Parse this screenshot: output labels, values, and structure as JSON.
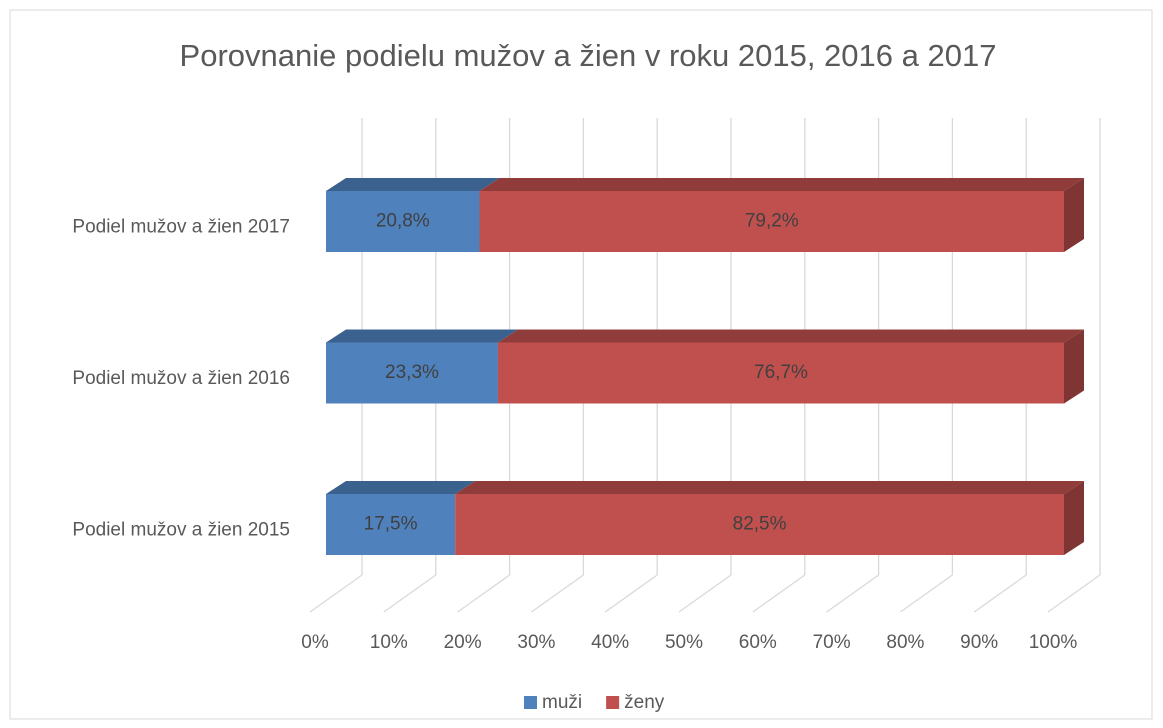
{
  "chart_data": {
    "type": "bar",
    "orientation": "horizontal",
    "stacked": true,
    "three_d": true,
    "title": "Porovnanie podielu mužov a žien v roku 2015, 2016 a 2017",
    "categories": [
      "Podiel mužov a žien 2017",
      "Podiel mužov a žien 2016",
      "Podiel mužov a žien 2015"
    ],
    "series": [
      {
        "name": "muži",
        "color": "#4f81bd",
        "values": [
          20.8,
          23.3,
          17.5
        ],
        "value_labels": [
          "20,8%",
          "23,3%",
          "17,5%"
        ]
      },
      {
        "name": "ženy",
        "color": "#c0504d",
        "values": [
          79.2,
          76.7,
          82.5
        ],
        "value_labels": [
          "79,2%",
          "76,7%",
          "82,5%"
        ]
      }
    ],
    "xlim": [
      0,
      100
    ],
    "xticks": [
      {
        "value": 0,
        "label": "0%"
      },
      {
        "value": 10,
        "label": "10%"
      },
      {
        "value": 20,
        "label": "20%"
      },
      {
        "value": 30,
        "label": "30%"
      },
      {
        "value": 40,
        "label": "40%"
      },
      {
        "value": 50,
        "label": "50%"
      },
      {
        "value": 60,
        "label": "60%"
      },
      {
        "value": 70,
        "label": "70%"
      },
      {
        "value": 80,
        "label": "80%"
      },
      {
        "value": 90,
        "label": "90%"
      },
      {
        "value": 100,
        "label": "100%"
      }
    ],
    "grid": true,
    "legend": "bottom"
  }
}
